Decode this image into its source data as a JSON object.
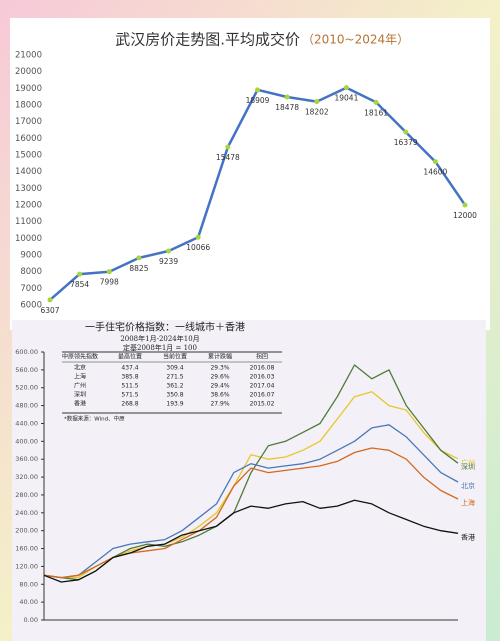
{
  "chart_data": [
    {
      "type": "line",
      "title": "武汉房价走势图.平均成交价",
      "subtitle": "（2010~2024年）",
      "values": [
        6307,
        7854,
        7998,
        8825,
        9239,
        10066,
        15478,
        18909,
        18478,
        18202,
        19041,
        18161,
        16379,
        14600,
        12000
      ],
      "color": "#4472c4",
      "marker_color": "#a8d63a",
      "ylim": [
        6000,
        21000
      ],
      "yticks": [
        6000,
        7000,
        8000,
        9000,
        10000,
        11000,
        12000,
        13000,
        14000,
        15000,
        16000,
        17000,
        18000,
        19000,
        20000,
        21000
      ],
      "grid": false
    },
    {
      "type": "line",
      "title": "一手住宅价格指数：一线城市＋香港",
      "subtitle": "2008年1月-2024年10月",
      "note_base": "定基2008年1月 = 100",
      "ylim": [
        0,
        600
      ],
      "yticks": [
        {
          "value": 0,
          "label": "0.00"
        },
        {
          "value": 40,
          "label": "40.00"
        },
        {
          "value": 80,
          "label": "80.00"
        },
        {
          "value": 120,
          "label": "120.00"
        },
        {
          "value": 160,
          "label": "160.00"
        },
        {
          "value": 200,
          "label": "200.00"
        },
        {
          "value": 240,
          "label": "240.00"
        },
        {
          "value": 280,
          "label": "280.00"
        },
        {
          "value": 320,
          "label": "320.00"
        },
        {
          "value": 360,
          "label": "360.00"
        },
        {
          "value": 400,
          "label": "400.00"
        },
        {
          "value": 440,
          "label": "440.00"
        },
        {
          "value": 480,
          "label": "480.00"
        },
        {
          "value": 520,
          "label": "520.00"
        },
        {
          "value": 560,
          "label": "560.00"
        },
        {
          "value": 600,
          "label": "600.00"
        }
      ],
      "grid": false,
      "series": [
        {
          "name": "广州",
          "color": "#e8c62a",
          "values": [
            100,
            95,
            95,
            120,
            140,
            155,
            165,
            170,
            185,
            210,
            240,
            300,
            370,
            360,
            365,
            380,
            400,
            450,
            500,
            511,
            480,
            470,
            420,
            380,
            361
          ]
        },
        {
          "name": "深圳",
          "color": "#4f7a3a",
          "values": [
            100,
            95,
            90,
            110,
            140,
            160,
            170,
            165,
            175,
            190,
            210,
            240,
            330,
            390,
            400,
            420,
            440,
            500,
            571,
            540,
            560,
            480,
            430,
            380,
            351
          ]
        },
        {
          "name": "北京",
          "color": "#4a78b8",
          "values": [
            100,
            95,
            100,
            130,
            160,
            170,
            175,
            180,
            200,
            230,
            260,
            330,
            350,
            340,
            345,
            350,
            360,
            380,
            400,
            430,
            437,
            410,
            370,
            330,
            309
          ]
        },
        {
          "name": "上海",
          "color": "#d2691e",
          "values": [
            100,
            95,
            100,
            120,
            140,
            150,
            155,
            160,
            180,
            200,
            230,
            300,
            340,
            330,
            335,
            340,
            345,
            355,
            375,
            385,
            380,
            360,
            320,
            290,
            271
          ]
        },
        {
          "name": "香港",
          "color": "#111111",
          "values": [
            100,
            85,
            90,
            110,
            140,
            150,
            165,
            170,
            190,
            200,
            210,
            240,
            255,
            250,
            260,
            265,
            250,
            255,
            268,
            260,
            240,
            225,
            210,
            200,
            194
          ]
        }
      ],
      "table": {
        "header": [
          "中原领先指数",
          "最高位置",
          "当前位置",
          "累计跌幅",
          "拐回"
        ],
        "rows": [
          [
            "北京",
            "437.4",
            "309.4",
            "29.3%",
            "2016.08"
          ],
          [
            "上海",
            "385.8",
            "271.5",
            "29.6%",
            "2016.03"
          ],
          [
            "广州",
            "511.5",
            "361.2",
            "29.4%",
            "2017.04"
          ],
          [
            "深圳",
            "571.5",
            "350.8",
            "38.6%",
            "2016.07"
          ],
          [
            "香港",
            "268.8",
            "193.9",
            "27.9%",
            "2015.02"
          ]
        ],
        "note": "*数据来源：Wind、中原"
      }
    }
  ]
}
